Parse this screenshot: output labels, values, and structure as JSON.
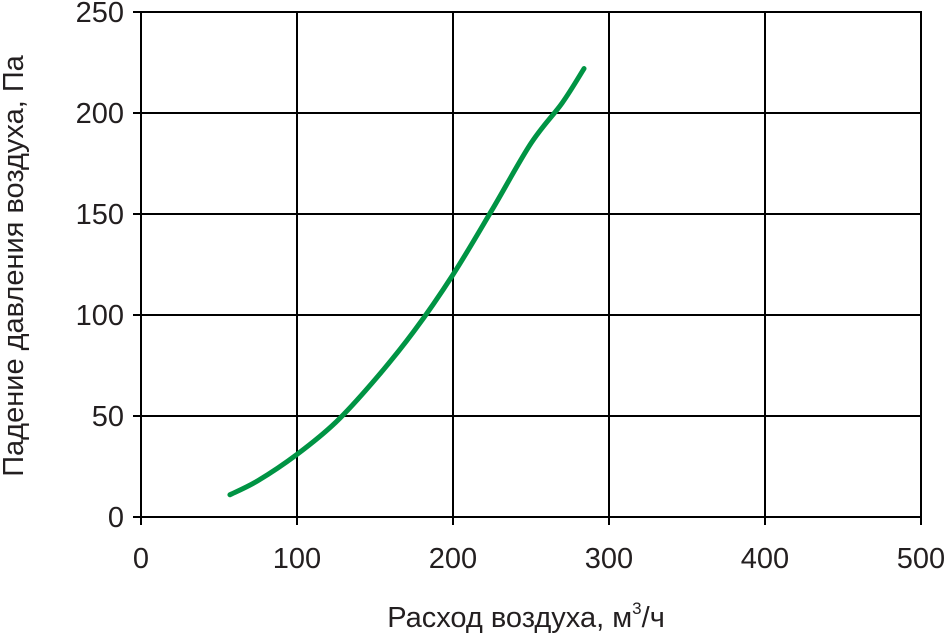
{
  "chart_data": {
    "type": "line",
    "title": "",
    "xlabel": "Расход воздуха, м",
    "xlabel_sup": "3",
    "xlabel_suffix": "/ч",
    "ylabel": "Падение давления воздуха, Па",
    "xlim": [
      0,
      500
    ],
    "ylim": [
      0,
      250
    ],
    "xticks": [
      "0",
      "100",
      "200",
      "300",
      "400",
      "500"
    ],
    "yticks": [
      "0",
      "50",
      "100",
      "150",
      "200",
      "250"
    ],
    "grid": true,
    "legend": "none",
    "colors": {
      "series": "#009444",
      "grid": "#000000",
      "text": "#231f20"
    },
    "series": [
      {
        "x": [
          57,
          75,
          100,
          125,
          150,
          175,
          200,
          225,
          250,
          270,
          284
        ],
        "y": [
          11,
          18,
          31,
          47,
          68,
          92,
          120,
          152,
          185,
          205,
          222
        ]
      }
    ]
  }
}
